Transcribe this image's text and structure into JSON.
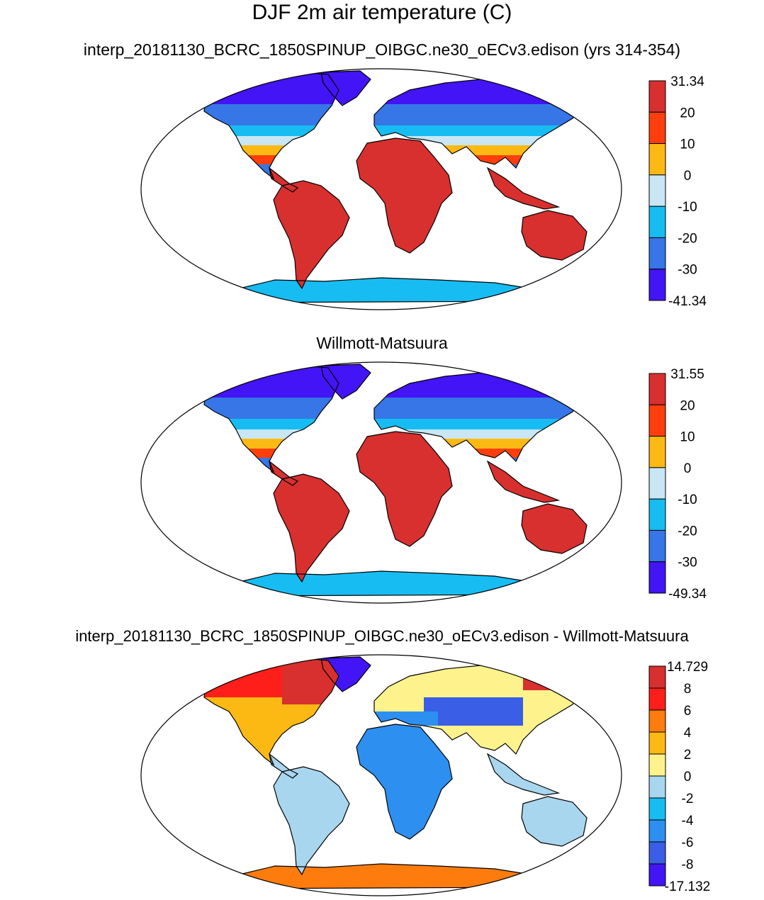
{
  "title": "DJF 2m air temperature (C)",
  "panels": [
    {
      "title": "interp_20181130_BCRC_1850SPINUP_OIBGC.ne30_oECv3.edison (yrs 314-354)",
      "colorbar": {
        "labels": [
          "31.34",
          "20",
          "10",
          "0",
          "-10",
          "-20",
          "-30",
          "-41.34"
        ],
        "colors": [
          "#d7302f",
          "#fe3f0d",
          "#fdb913",
          "#c8e6f4",
          "#17bdf2",
          "#3676e6",
          "#4314f5"
        ]
      }
    },
    {
      "title": "Willmott-Matsuura",
      "colorbar": {
        "labels": [
          "31.55",
          "20",
          "10",
          "0",
          "-10",
          "-20",
          "-30",
          "-49.34"
        ],
        "colors": [
          "#d7302f",
          "#fe3f0d",
          "#fdb913",
          "#c8e6f4",
          "#17bdf2",
          "#3676e6",
          "#4314f5"
        ]
      }
    },
    {
      "title": "interp_20181130_BCRC_1850SPINUP_OIBGC.ne30_oECv3.edison - Willmott-Matsuura",
      "colorbar": {
        "labels": [
          "14.729",
          "8",
          "6",
          "4",
          "2",
          "0",
          "-2",
          "-4",
          "-6",
          "-8",
          "-17.132"
        ],
        "colors": [
          "#d7302f",
          "#fe1f1a",
          "#fe7b0d",
          "#fdb913",
          "#fef28c",
          "#a8d6ee",
          "#17bdf2",
          "#2d8ff0",
          "#3a5ee6",
          "#4314f5"
        ]
      }
    }
  ]
}
